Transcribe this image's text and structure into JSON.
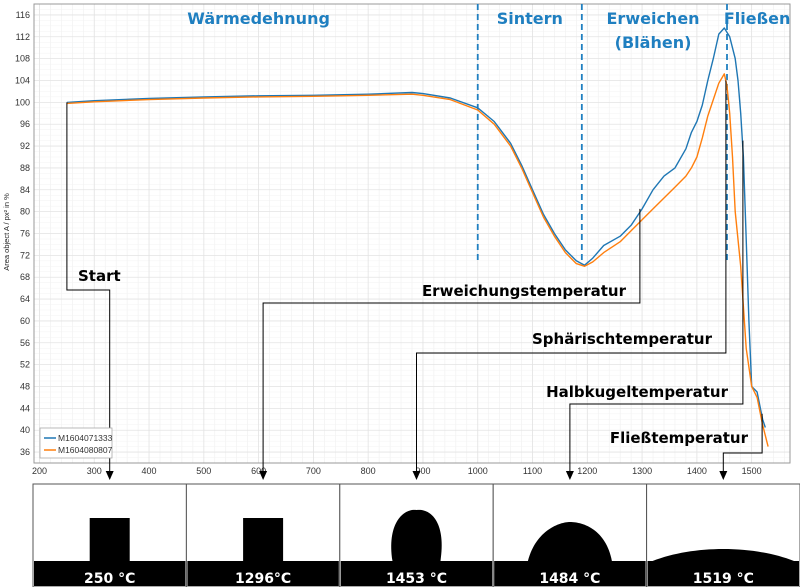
{
  "chart_data": {
    "type": "line",
    "title": "",
    "xlabel": "",
    "ylabel": "Area object A / px² in %",
    "xlim": [
      190,
      1570
    ],
    "ylim": [
      34,
      118
    ],
    "xticks": [
      200,
      300,
      400,
      500,
      600,
      700,
      800,
      900,
      1000,
      1100,
      1200,
      1300,
      1400,
      1500
    ],
    "yticks": [
      36,
      40,
      44,
      48,
      52,
      56,
      60,
      64,
      68,
      72,
      76,
      80,
      84,
      88,
      92,
      96,
      100,
      104,
      108,
      112,
      116
    ],
    "grid": true,
    "legend_position": "bottom-left",
    "series": [
      {
        "name": "M1604071333",
        "color": "#1f77b4",
        "points": [
          [
            250,
            100.0
          ],
          [
            300,
            100.3
          ],
          [
            400,
            100.7
          ],
          [
            500,
            101.0
          ],
          [
            600,
            101.2
          ],
          [
            700,
            101.3
          ],
          [
            800,
            101.5
          ],
          [
            880,
            101.8
          ],
          [
            900,
            101.6
          ],
          [
            950,
            100.8
          ],
          [
            1000,
            99.0
          ],
          [
            1030,
            96.5
          ],
          [
            1060,
            92.5
          ],
          [
            1080,
            88.5
          ],
          [
            1100,
            84.0
          ],
          [
            1120,
            79.5
          ],
          [
            1140,
            76.0
          ],
          [
            1160,
            73.0
          ],
          [
            1180,
            71.0
          ],
          [
            1195,
            70.2
          ],
          [
            1210,
            71.5
          ],
          [
            1230,
            73.8
          ],
          [
            1260,
            75.5
          ],
          [
            1280,
            77.5
          ],
          [
            1300,
            80.5
          ],
          [
            1320,
            84.0
          ],
          [
            1340,
            86.5
          ],
          [
            1360,
            88.0
          ],
          [
            1380,
            91.5
          ],
          [
            1390,
            94.5
          ],
          [
            1400,
            96.5
          ],
          [
            1410,
            99.5
          ],
          [
            1420,
            104.0
          ],
          [
            1430,
            108.0
          ],
          [
            1440,
            112.5
          ],
          [
            1450,
            113.6
          ],
          [
            1460,
            112.0
          ],
          [
            1470,
            108.0
          ],
          [
            1475,
            104.0
          ],
          [
            1480,
            98.0
          ],
          [
            1485,
            90.0
          ],
          [
            1490,
            75.0
          ],
          [
            1495,
            60.0
          ],
          [
            1500,
            48.0
          ],
          [
            1510,
            47.0
          ],
          [
            1520,
            42.0
          ],
          [
            1525,
            40.5
          ]
        ]
      },
      {
        "name": "M1604080807",
        "color": "#ff7f0e",
        "points": [
          [
            250,
            99.8
          ],
          [
            300,
            100.1
          ],
          [
            400,
            100.5
          ],
          [
            500,
            100.8
          ],
          [
            600,
            101.0
          ],
          [
            700,
            101.1
          ],
          [
            800,
            101.3
          ],
          [
            880,
            101.5
          ],
          [
            900,
            101.3
          ],
          [
            950,
            100.5
          ],
          [
            1000,
            98.6
          ],
          [
            1030,
            96.0
          ],
          [
            1060,
            92.0
          ],
          [
            1080,
            88.0
          ],
          [
            1100,
            83.5
          ],
          [
            1120,
            79.0
          ],
          [
            1140,
            75.5
          ],
          [
            1160,
            72.5
          ],
          [
            1180,
            70.5
          ],
          [
            1195,
            70.0
          ],
          [
            1210,
            70.8
          ],
          [
            1230,
            72.5
          ],
          [
            1260,
            74.5
          ],
          [
            1280,
            76.5
          ],
          [
            1300,
            78.5
          ],
          [
            1320,
            80.5
          ],
          [
            1340,
            82.5
          ],
          [
            1360,
            84.5
          ],
          [
            1380,
            86.5
          ],
          [
            1390,
            88.0
          ],
          [
            1400,
            90.0
          ],
          [
            1410,
            93.5
          ],
          [
            1420,
            97.5
          ],
          [
            1430,
            100.5
          ],
          [
            1440,
            103.5
          ],
          [
            1450,
            105.2
          ],
          [
            1455,
            103.0
          ],
          [
            1460,
            98.0
          ],
          [
            1465,
            90.0
          ],
          [
            1470,
            80.0
          ],
          [
            1480,
            70.0
          ],
          [
            1490,
            55.0
          ],
          [
            1500,
            48.0
          ],
          [
            1510,
            46.0
          ],
          [
            1520,
            41.0
          ],
          [
            1530,
            37.0
          ]
        ]
      }
    ],
    "phase_boundaries": [
      1000,
      1190,
      1455
    ],
    "phases": [
      {
        "label": "Wärmedehnung",
        "x": 600
      },
      {
        "label": "Sintern",
        "x": 1095
      },
      {
        "label": "Erweichen",
        "x": 1320
      },
      {
        "label": "(Blähen)",
        "x": 1320
      },
      {
        "label": "Fließen",
        "x": 1510
      }
    ],
    "annotations": [
      {
        "label": "Start",
        "from_x": 250,
        "from_y": 100.0
      },
      {
        "label": "Erweichungstemperatur",
        "from_x": 1296,
        "from_y": 80.5
      },
      {
        "label": "Sphärischtemperatur",
        "from_x": 1453,
        "from_y": 104.0
      },
      {
        "label": "Halbkugeltemperatur",
        "from_x": 1484,
        "from_y": 93.0
      },
      {
        "label": "Fließtemperatur",
        "from_x": 1519,
        "from_y": 43.0
      }
    ]
  },
  "images": [
    {
      "temp_label": "250 °C",
      "shape": "cylinder"
    },
    {
      "temp_label": "1296°C",
      "shape": "rough-cylinder"
    },
    {
      "temp_label": "1453 °C",
      "shape": "sphere"
    },
    {
      "temp_label": "1484 °C",
      "shape": "hemisphere"
    },
    {
      "temp_label": "1519 °C",
      "shape": "flat"
    }
  ],
  "colors": {
    "accent": "#1f7fc0",
    "series1": "#1f77b4",
    "series2": "#ff7f0e",
    "grid": "#e3e3e3"
  }
}
